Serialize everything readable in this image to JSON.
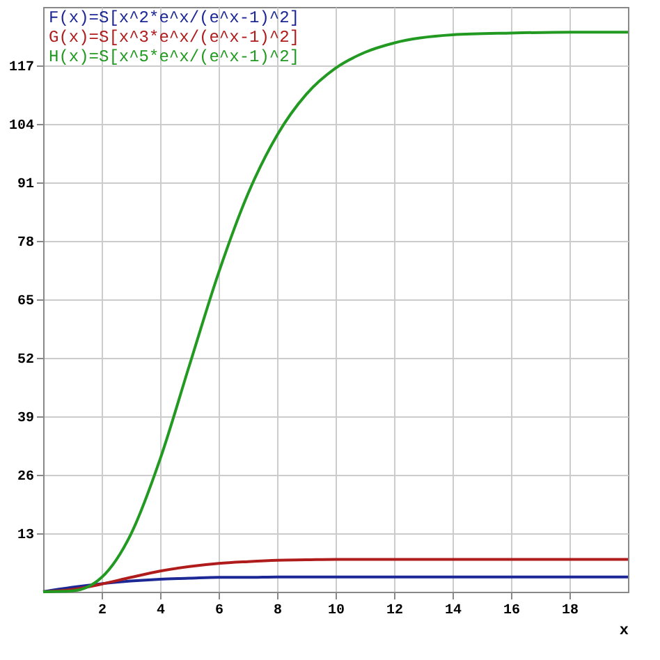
{
  "chart_data": {
    "type": "line",
    "xlabel": "x",
    "x": [
      0,
      1,
      2,
      3,
      4,
      5,
      6,
      7,
      8,
      9,
      10,
      11,
      12,
      14,
      16,
      18,
      20
    ],
    "series": [
      {
        "name": "F(x)=S[x^2*e^x/(e^x-1)^2]",
        "color": "#1c2896",
        "values": [
          0,
          1.0,
          1.8,
          2.4,
          2.8,
          3.0,
          3.2,
          3.2,
          3.3,
          3.3,
          3.3,
          3.3,
          3.3,
          3.3,
          3.3,
          3.3,
          3.3
        ]
      },
      {
        "name": "G(x)=S[x^3*e^x/(e^x-1)^2]",
        "color": "#b01c1c",
        "values": [
          0,
          0.5,
          1.7,
          3.2,
          4.6,
          5.6,
          6.3,
          6.7,
          7.0,
          7.1,
          7.2,
          7.2,
          7.2,
          7.2,
          7.2,
          7.2,
          7.2
        ]
      },
      {
        "name": "H(x)=S[x^5*e^x/(e^x-1)^2]",
        "color": "#229a22",
        "values": [
          0,
          0.2,
          3.2,
          12.8,
          29.5,
          50.3,
          70.9,
          88.4,
          101.5,
          110.6,
          116.4,
          119.9,
          122.0,
          123.8,
          124.2,
          124.4,
          124.4
        ]
      }
    ],
    "xlim": [
      0,
      20
    ],
    "ylim": [
      0,
      130
    ],
    "xticks": [
      2,
      4,
      6,
      8,
      10,
      12,
      14,
      16,
      18
    ],
    "yticks": [
      13,
      26,
      39,
      52,
      65,
      78,
      91,
      104,
      117
    ],
    "grid": true,
    "legend": "top left",
    "marker": "none",
    "line_style": "solid"
  }
}
